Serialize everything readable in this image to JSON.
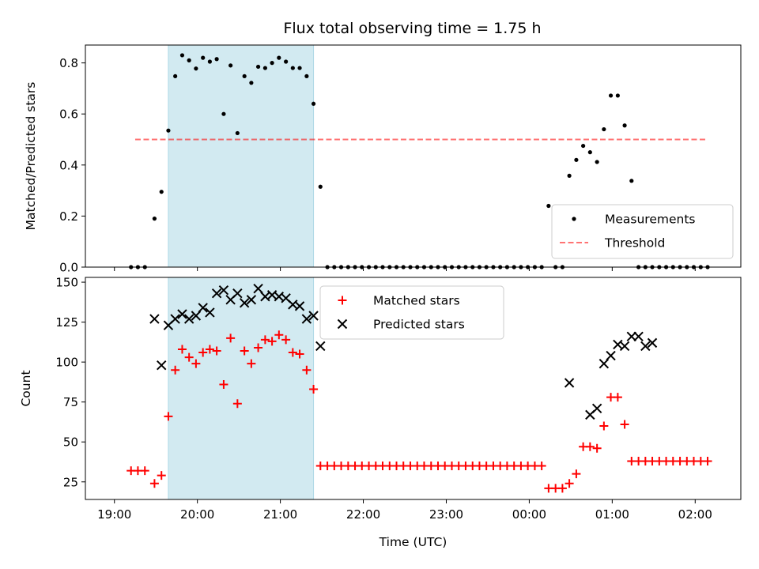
{
  "title": "Flux total observing time = 1.75 h",
  "colors": {
    "background": "#ffffff",
    "span": "#add8e6",
    "measurement": "#000000",
    "threshold": "#ff0000",
    "matched": "#ff0000",
    "predicted": "#000000"
  },
  "chart_data": [
    {
      "type": "scatter",
      "ylabel": "Matched/Predicted stars",
      "xlim": [
        -0.35,
        7.55
      ],
      "ylim": [
        0,
        0.87
      ],
      "yticks": [
        0.0,
        0.2,
        0.4,
        0.6,
        0.8
      ],
      "ytick_labels": [
        "0.0",
        "0.2",
        "0.4",
        "0.6",
        "0.8"
      ],
      "xticks": [
        0,
        1,
        2,
        3,
        4,
        5,
        6,
        7
      ],
      "shaded_span": {
        "x_start": 0.65,
        "x_end": 2.4
      },
      "legend_position": "lower right",
      "series": [
        {
          "name": "Measurements",
          "marker": "dot",
          "x": [
            0.2,
            0.283,
            0.367,
            0.483,
            0.567,
            0.65,
            0.733,
            0.817,
            0.9,
            0.983,
            1.067,
            1.15,
            1.233,
            1.317,
            1.4,
            1.483,
            1.567,
            1.65,
            1.733,
            1.817,
            1.9,
            1.983,
            2.067,
            2.15,
            2.233,
            2.317,
            2.4,
            2.483,
            2.567,
            2.65,
            2.733,
            2.817,
            2.9,
            2.983,
            3.067,
            3.15,
            3.233,
            3.317,
            3.4,
            3.483,
            3.567,
            3.65,
            3.733,
            3.817,
            3.9,
            3.983,
            4.067,
            4.15,
            4.233,
            4.317,
            4.4,
            4.483,
            4.567,
            4.65,
            4.733,
            4.817,
            4.9,
            4.983,
            5.067,
            5.15,
            5.233,
            5.317,
            5.4,
            5.483,
            5.567,
            5.65,
            5.733,
            5.817,
            5.9,
            5.983,
            6.067,
            6.15,
            6.233,
            6.317,
            6.4,
            6.483,
            6.567,
            6.65,
            6.733,
            6.817,
            6.9,
            6.983,
            7.067,
            7.15
          ],
          "y": [
            0,
            0,
            0,
            0.19,
            0.295,
            0.535,
            0.748,
            0.83,
            0.81,
            0.778,
            0.82,
            0.805,
            0.815,
            0.6,
            0.79,
            0.525,
            0.748,
            0.722,
            0.785,
            0.78,
            0.8,
            0.82,
            0.805,
            0.78,
            0.78,
            0.748,
            0.64,
            0.315,
            0,
            0,
            0,
            0,
            0,
            0,
            0,
            0,
            0,
            0,
            0,
            0,
            0,
            0,
            0,
            0,
            0,
            0,
            0,
            0,
            0,
            0,
            0,
            0,
            0,
            0,
            0,
            0,
            0,
            0,
            0,
            0,
            0.24,
            0,
            0,
            0.358,
            0.42,
            0.475,
            0.45,
            0.412,
            0.54,
            0.672,
            0.672,
            0.555,
            0.338,
            0,
            0,
            0,
            0,
            0,
            0,
            0,
            0,
            0,
            0,
            0
          ]
        },
        {
          "name": "Threshold",
          "marker": "dashed-line",
          "x": [
            0.25,
            7.15
          ],
          "y": [
            0.5,
            0.5
          ]
        }
      ]
    },
    {
      "type": "scatter",
      "xlabel": "Time (UTC)",
      "ylabel": "Count",
      "xlim": [
        -0.35,
        7.55
      ],
      "ylim": [
        14,
        153
      ],
      "yticks": [
        25,
        50,
        75,
        100,
        125,
        150
      ],
      "ytick_labels": [
        "25",
        "50",
        "75",
        "100",
        "125",
        "150"
      ],
      "xticks": [
        0,
        1,
        2,
        3,
        4,
        5,
        6,
        7
      ],
      "xtick_labels": [
        "19:00",
        "20:00",
        "21:00",
        "22:00",
        "23:00",
        "00:00",
        "01:00",
        "02:00"
      ],
      "shaded_span": {
        "x_start": 0.65,
        "x_end": 2.4
      },
      "legend_position": "upper center",
      "series": [
        {
          "name": "Matched stars",
          "marker": "plus",
          "x": [
            0.2,
            0.283,
            0.367,
            0.483,
            0.567,
            0.65,
            0.733,
            0.817,
            0.9,
            0.983,
            1.067,
            1.15,
            1.233,
            1.317,
            1.4,
            1.483,
            1.567,
            1.65,
            1.733,
            1.817,
            1.9,
            1.983,
            2.067,
            2.15,
            2.233,
            2.317,
            2.4,
            2.483,
            2.567,
            2.65,
            2.733,
            2.817,
            2.9,
            2.983,
            3.067,
            3.15,
            3.233,
            3.317,
            3.4,
            3.483,
            3.567,
            3.65,
            3.733,
            3.817,
            3.9,
            3.983,
            4.067,
            4.15,
            4.233,
            4.317,
            4.4,
            4.483,
            4.567,
            4.65,
            4.733,
            4.817,
            4.9,
            4.983,
            5.067,
            5.15,
            5.233,
            5.317,
            5.4,
            5.483,
            5.567,
            5.65,
            5.733,
            5.817,
            5.9,
            5.983,
            6.067,
            6.15,
            6.233,
            6.317,
            6.4,
            6.483,
            6.567,
            6.65,
            6.733,
            6.817,
            6.9,
            6.983,
            7.067,
            7.15
          ],
          "y": [
            32,
            32,
            32,
            24,
            29,
            66,
            95,
            108,
            103,
            99,
            106,
            108,
            107,
            86,
            115,
            74,
            107,
            99,
            109,
            114,
            113,
            117,
            114,
            106,
            105,
            95,
            83,
            35,
            35,
            35,
            35,
            35,
            35,
            35,
            35,
            35,
            35,
            35,
            35,
            35,
            35,
            35,
            35,
            35,
            35,
            35,
            35,
            35,
            35,
            35,
            35,
            35,
            35,
            35,
            35,
            35,
            35,
            35,
            35,
            35,
            21,
            21,
            21,
            24,
            30,
            47,
            47,
            46,
            60,
            78,
            78,
            61,
            38,
            38,
            38,
            38,
            38,
            38,
            38,
            38,
            38,
            38,
            38,
            38
          ]
        },
        {
          "name": "Predicted stars",
          "marker": "x",
          "x": [
            0.483,
            0.567,
            0.65,
            0.733,
            0.817,
            0.9,
            0.983,
            1.067,
            1.15,
            1.233,
            1.317,
            1.4,
            1.483,
            1.567,
            1.65,
            1.733,
            1.817,
            1.9,
            1.983,
            2.067,
            2.15,
            2.233,
            2.317,
            2.4,
            2.483,
            5.483,
            5.733,
            5.817,
            5.9,
            5.983,
            6.067,
            6.15,
            6.233,
            6.317,
            6.4,
            6.483
          ],
          "y": [
            127,
            98,
            123,
            127,
            130,
            127,
            129,
            134,
            131,
            143,
            145,
            139,
            143,
            137,
            139,
            146,
            141,
            142,
            141,
            140,
            136,
            135,
            127,
            129,
            110,
            87,
            67,
            71,
            99,
            104,
            111,
            110,
            116,
            116,
            110,
            112
          ]
        }
      ]
    }
  ]
}
